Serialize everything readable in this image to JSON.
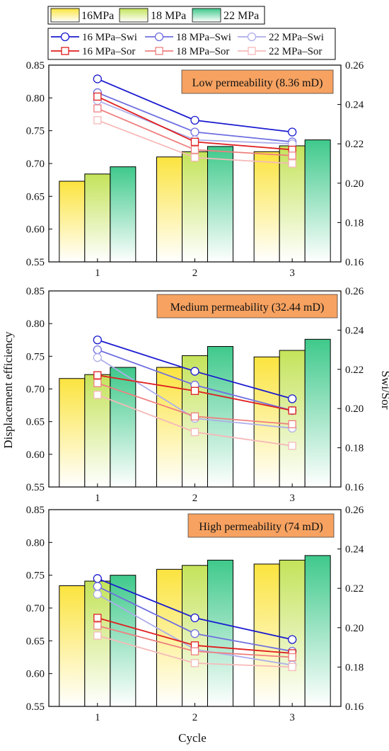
{
  "figure": {
    "ylabel_left": "Displacement efficiency",
    "ylabel_right": "Swi/Sor",
    "xlabel": "Cycle"
  },
  "legend_bars": [
    {
      "label": "16MPa",
      "color_top": "#fbe43f",
      "color_bottom": "#ffffff"
    },
    {
      "label": "18 MPa",
      "color_top": "#c4e35a",
      "color_bottom": "#ffffff"
    },
    {
      "label": "22 MPa",
      "color_top": "#3fc98b",
      "color_bottom": "#ffffff"
    }
  ],
  "legend_lines": [
    {
      "label": "16 MPa–Swi",
      "color": "#1b1bd0",
      "marker": "circle"
    },
    {
      "label": "18 MPa–Swi",
      "color": "#6f6fe0",
      "marker": "circle"
    },
    {
      "label": "22 MPa–Swi",
      "color": "#adaeea",
      "marker": "circle"
    },
    {
      "label": "16 MPa–Sor",
      "color": "#e01e1e",
      "marker": "square"
    },
    {
      "label": "18 MPa–Sor",
      "color": "#ef7f7f",
      "marker": "square"
    },
    {
      "label": "22 MPa–Sor",
      "color": "#f6b9b9",
      "marker": "square"
    }
  ],
  "chart_data": [
    {
      "type": "bar",
      "title": "Low permeability (8.36 mD)",
      "categories": [
        "1",
        "2",
        "3"
      ],
      "left_yticks": [
        "0.55",
        "0.60",
        "0.65",
        "0.70",
        "0.75",
        "0.80",
        "0.85"
      ],
      "right_yticks": [
        "0.16",
        "0.18",
        "0.20",
        "0.22",
        "0.24",
        "0.26"
      ],
      "ylim_left": [
        0.55,
        0.85
      ],
      "ylim_right": [
        0.16,
        0.26
      ],
      "bar_series": [
        {
          "name": "16MPa",
          "values": [
            0.673,
            0.71,
            0.718
          ]
        },
        {
          "name": "18 MPa",
          "values": [
            0.684,
            0.718,
            0.727
          ]
        },
        {
          "name": "22 MPa",
          "values": [
            0.695,
            0.726,
            0.736
          ]
        }
      ],
      "line_series": [
        {
          "name": "16 MPa–Swi",
          "values": [
            0.253,
            0.232,
            0.226
          ]
        },
        {
          "name": "18 MPa–Swi",
          "values": [
            0.246,
            0.226,
            0.221
          ]
        },
        {
          "name": "22 MPa–Swi",
          "values": [
            0.242,
            0.222,
            0.22
          ]
        },
        {
          "name": "16 MPa–Sor",
          "values": [
            0.244,
            0.221,
            0.217
          ]
        },
        {
          "name": "18 MPa–Sor",
          "values": [
            0.238,
            0.217,
            0.214
          ]
        },
        {
          "name": "22 MPa–Sor",
          "values": [
            0.232,
            0.213,
            0.21
          ]
        }
      ]
    },
    {
      "type": "bar",
      "title": "Medium permeability (32.44 mD)",
      "categories": [
        "1",
        "2",
        "3"
      ],
      "left_yticks": [
        "0.55",
        "0.60",
        "0.65",
        "0.70",
        "0.75",
        "0.80",
        "0.85"
      ],
      "right_yticks": [
        "0.16",
        "0.18",
        "0.20",
        "0.22",
        "0.24",
        "0.26"
      ],
      "ylim_left": [
        0.55,
        0.85
      ],
      "ylim_right": [
        0.16,
        0.26
      ],
      "bar_series": [
        {
          "name": "16MPa",
          "values": [
            0.716,
            0.733,
            0.749
          ]
        },
        {
          "name": "18 MPa",
          "values": [
            0.722,
            0.751,
            0.759
          ]
        },
        {
          "name": "22 MPa",
          "values": [
            0.733,
            0.765,
            0.776
          ]
        }
      ],
      "line_series": [
        {
          "name": "16 MPa–Swi",
          "values": [
            0.235,
            0.219,
            0.205
          ]
        },
        {
          "name": "18 MPa–Swi",
          "values": [
            0.23,
            0.212,
            0.199
          ]
        },
        {
          "name": "22 MPa–Swi",
          "values": [
            0.226,
            0.195,
            0.19
          ]
        },
        {
          "name": "16 MPa–Sor",
          "values": [
            0.217,
            0.209,
            0.199
          ]
        },
        {
          "name": "18 MPa–Sor",
          "values": [
            0.213,
            0.196,
            0.192
          ]
        },
        {
          "name": "22 MPa–Sor",
          "values": [
            0.207,
            0.188,
            0.181
          ]
        }
      ]
    },
    {
      "type": "bar",
      "title": "High permeability (74 mD)",
      "categories": [
        "1",
        "2",
        "3"
      ],
      "left_yticks": [
        "0.55",
        "0.60",
        "0.65",
        "0.70",
        "0.75",
        "0.80",
        "0.85"
      ],
      "right_yticks": [
        "0.16",
        "0.18",
        "0.20",
        "0.22",
        "0.24",
        "0.26"
      ],
      "ylim_left": [
        0.55,
        0.85
      ],
      "ylim_right": [
        0.16,
        0.26
      ],
      "bar_series": [
        {
          "name": "16MPa",
          "values": [
            0.734,
            0.759,
            0.767
          ]
        },
        {
          "name": "18 MPa",
          "values": [
            0.741,
            0.765,
            0.773
          ]
        },
        {
          "name": "22 MPa",
          "values": [
            0.75,
            0.773,
            0.78
          ]
        }
      ],
      "line_series": [
        {
          "name": "16 MPa–Swi",
          "values": [
            0.225,
            0.205,
            0.194
          ]
        },
        {
          "name": "18 MPa–Swi",
          "values": [
            0.221,
            0.197,
            0.188
          ]
        },
        {
          "name": "22 MPa–Swi",
          "values": [
            0.217,
            0.189,
            0.181
          ]
        },
        {
          "name": "16 MPa–Sor",
          "values": [
            0.205,
            0.191,
            0.187
          ]
        },
        {
          "name": "18 MPa–Sor",
          "values": [
            0.201,
            0.188,
            0.185
          ]
        },
        {
          "name": "22 MPa–Sor",
          "values": [
            0.196,
            0.182,
            0.18
          ]
        }
      ]
    }
  ]
}
